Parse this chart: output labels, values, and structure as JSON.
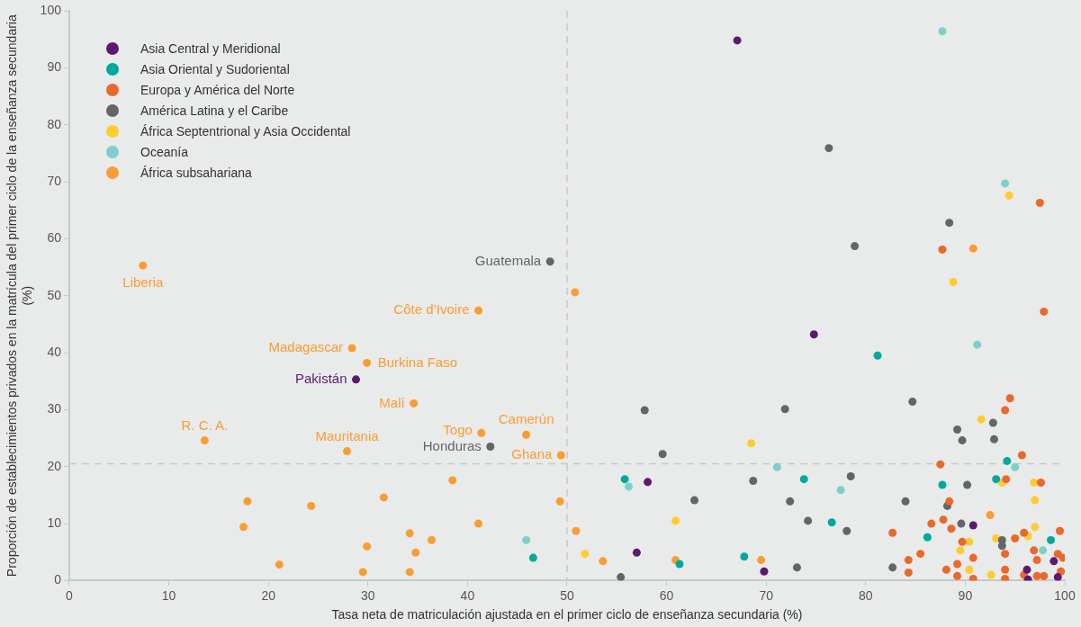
{
  "chart_data": {
    "type": "scatter",
    "xlabel": "Tasa neta de matriculación ajustada en el primer ciclo de enseñanza secundaria (%)",
    "ylabel": "Proporción de establecimientos privados en la matrícula del primer ciclo de la enseñanza secundaria (%)",
    "xlim": [
      0,
      100
    ],
    "ylim": [
      0,
      100
    ],
    "xticks": [
      0,
      10,
      20,
      30,
      40,
      50,
      60,
      70,
      80,
      90,
      100
    ],
    "yticks": [
      0,
      10,
      20,
      30,
      40,
      50,
      60,
      70,
      80,
      90,
      100
    ],
    "grid": false,
    "legend": "top left",
    "marker": "circle",
    "series": [
      {
        "name": "Asia Central y Meridional",
        "color": "#5c1a6e",
        "x": [
          67.1,
          74.8,
          28.8,
          58.1,
          57.0,
          69.8,
          90.8,
          96.2,
          96.3,
          98.9,
          99.3
        ],
        "values": [
          94.8,
          43.2,
          35.3,
          17.3,
          4.9,
          1.6,
          9.7,
          1.9,
          0.2,
          3.4,
          0.6
        ]
      },
      {
        "name": "Asia Oriental y Sudoriental",
        "color": "#00a99d",
        "x": [
          81.2,
          94.2,
          73.8,
          93.1,
          87.7,
          76.6,
          86.2,
          98.6,
          67.8,
          55.8,
          46.6,
          61.3
        ],
        "values": [
          39.5,
          21.0,
          17.8,
          17.8,
          16.8,
          10.2,
          7.6,
          7.1,
          4.2,
          17.8,
          4.0,
          2.9
        ]
      },
      {
        "name": "Europa y América del Norte",
        "color": "#e8692a",
        "x": [
          97.5,
          87.7,
          97.9,
          94.5,
          94.0,
          95.7,
          87.5,
          94.1,
          97.6,
          88.4,
          86.6,
          87.8,
          88.6,
          82.7,
          89.7,
          95.0,
          95.9,
          99.5,
          85.5,
          90.8,
          94.0,
          96.9,
          99.3,
          99.8,
          97.2,
          84.3,
          89.2,
          84.3,
          88.1,
          94.0,
          99.6,
          89.2,
          90.8,
          94.0,
          95.9,
          97.2,
          97.9
        ],
        "values": [
          66.3,
          58.1,
          47.2,
          32.0,
          29.9,
          22.0,
          20.4,
          17.8,
          17.2,
          13.9,
          10.0,
          10.7,
          9.1,
          8.4,
          6.8,
          7.4,
          8.4,
          8.7,
          4.7,
          4.0,
          4.7,
          5.3,
          4.7,
          4.0,
          3.6,
          3.6,
          2.9,
          1.4,
          1.9,
          1.9,
          1.6,
          0.8,
          0.3,
          0.3,
          1.0,
          0.8,
          0.8
        ]
      },
      {
        "name": "América Latina y el Caribe",
        "color": "#646567",
        "x": [
          76.3,
          88.4,
          78.9,
          48.3,
          42.3,
          84.7,
          71.9,
          89.2,
          92.8,
          89.7,
          92.9,
          68.7,
          78.5,
          90.2,
          72.4,
          84.0,
          88.2,
          74.2,
          78.1,
          89.6,
          93.7,
          93.7,
          73.1,
          82.7,
          57.8,
          59.6,
          62.8,
          55.4
        ],
        "values": [
          75.9,
          62.8,
          58.7,
          56.0,
          23.5,
          31.4,
          30.1,
          26.5,
          27.7,
          24.6,
          24.8,
          17.5,
          18.3,
          16.8,
          13.9,
          13.9,
          13.1,
          10.5,
          8.7,
          10.0,
          7.1,
          6.1,
          2.3,
          2.3,
          29.9,
          22.2,
          14.1,
          0.6
        ]
      },
      {
        "name": "África Septentrional y Asia Occidental",
        "color": "#ffcb2f",
        "x": [
          94.4,
          88.8,
          91.6,
          68.5,
          96.9,
          93.7,
          97.0,
          97.0,
          93.1,
          96.3,
          90.4,
          89.5,
          90.4,
          92.6,
          60.9,
          51.8
        ],
        "values": [
          67.6,
          52.4,
          28.3,
          24.1,
          17.2,
          17.2,
          14.1,
          9.4,
          7.4,
          7.8,
          6.8,
          5.3,
          1.9,
          1.0,
          10.5,
          4.7
        ]
      },
      {
        "name": "Oceanía",
        "color": "#7dd0c9",
        "x": [
          87.7,
          94.0,
          91.2,
          95.0,
          71.1,
          77.5,
          97.8,
          56.2,
          45.9
        ],
        "values": [
          96.4,
          69.7,
          41.4,
          19.9,
          19.9,
          15.9,
          5.3,
          16.5,
          7.1
        ]
      },
      {
        "name": "África subsahariana",
        "color": "#f99d33",
        "x": [
          7.4,
          28.4,
          29.9,
          34.6,
          13.6,
          27.9,
          17.9,
          24.3,
          31.6,
          17.5,
          21.1,
          29.9,
          29.5,
          34.2,
          36.4,
          34.8,
          34.2,
          41.1,
          50.8,
          41.4,
          45.9,
          49.4,
          38.5,
          49.3,
          41.1,
          50.9,
          53.6,
          60.9,
          69.5,
          92.5,
          90.8
        ],
        "values": [
          55.3,
          40.8,
          38.2,
          31.1,
          24.6,
          22.7,
          13.9,
          13.1,
          14.6,
          9.4,
          2.8,
          6.0,
          1.5,
          8.3,
          7.1,
          4.9,
          1.5,
          47.4,
          50.6,
          25.9,
          25.6,
          22.0,
          17.6,
          13.9,
          10.0,
          8.7,
          3.4,
          3.6,
          3.6,
          11.5,
          58.3
        ]
      }
    ],
    "ref_lines": [
      {
        "axis": "x",
        "value": 50,
        "line_style": "dashed",
        "color": "#c8c9c9"
      },
      {
        "axis": "y",
        "value": 20.5,
        "line_style": "dashed",
        "color": "#c8c9c9"
      }
    ],
    "annotations": [
      {
        "text": "Liberia",
        "x": 7.4,
        "y": 55.3
      },
      {
        "text": "Guatemala",
        "x": 48.3,
        "y": 56.0
      },
      {
        "text": "Côte d’Ivoire",
        "x": 41.1,
        "y": 47.4
      },
      {
        "text": "Madagascar",
        "x": 28.4,
        "y": 40.8
      },
      {
        "text": "Burkina Faso",
        "x": 29.9,
        "y": 38.2
      },
      {
        "text": "Pakistán",
        "x": 28.8,
        "y": 35.3
      },
      {
        "text": "Malí",
        "x": 34.6,
        "y": 31.1
      },
      {
        "text": "R. C. A.",
        "x": 13.6,
        "y": 24.6
      },
      {
        "text": "Mauritania",
        "x": 27.9,
        "y": 22.7
      },
      {
        "text": "Togo",
        "x": 41.4,
        "y": 25.9
      },
      {
        "text": "Camerún",
        "x": 45.9,
        "y": 25.6
      },
      {
        "text": "Honduras",
        "x": 42.3,
        "y": 23.5
      },
      {
        "text": "Ghana",
        "x": 49.4,
        "y": 22.0
      }
    ]
  }
}
